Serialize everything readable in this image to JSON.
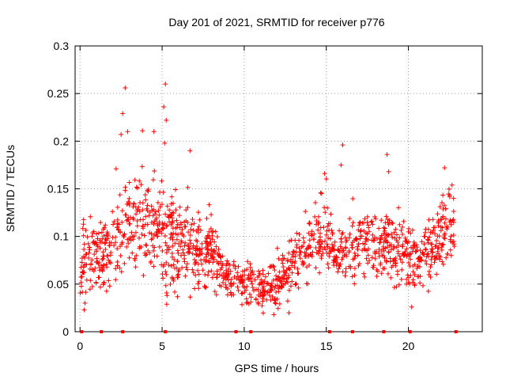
{
  "chart_data": {
    "type": "scatter",
    "title": "Day 201 of 2021, SRMTID for receiver p776",
    "xlabel": "GPS time / hours",
    "ylabel": "SRMTID / TECUs",
    "xlim": [
      -0.3,
      24.5
    ],
    "ylim": [
      0,
      0.3
    ],
    "xticks": [
      0,
      5,
      10,
      15,
      20
    ],
    "yticks": [
      0,
      0.05,
      0.1,
      0.15,
      0.2,
      0.25,
      0.3
    ],
    "xtick_labels": [
      "0",
      "5",
      "10",
      "15",
      "20"
    ],
    "ytick_labels": [
      "0",
      "0.05",
      "0.1",
      "0.15",
      "0.2",
      "0.25",
      "0.3"
    ],
    "grid": true,
    "marker": "+",
    "color": "#ff0000",
    "n_points": 1400,
    "density_profile": [
      [
        0.0,
        0.07,
        0.035
      ],
      [
        1.0,
        0.075,
        0.03
      ],
      [
        2.0,
        0.09,
        0.035
      ],
      [
        2.7,
        0.12,
        0.045
      ],
      [
        3.5,
        0.11,
        0.04
      ],
      [
        4.2,
        0.115,
        0.04
      ],
      [
        5.2,
        0.1,
        0.045
      ],
      [
        6.5,
        0.09,
        0.035
      ],
      [
        8.0,
        0.085,
        0.035
      ],
      [
        9.0,
        0.06,
        0.02
      ],
      [
        10.0,
        0.05,
        0.018
      ],
      [
        11.2,
        0.045,
        0.018
      ],
      [
        12.5,
        0.06,
        0.025
      ],
      [
        13.5,
        0.085,
        0.03
      ],
      [
        14.5,
        0.095,
        0.035
      ],
      [
        15.0,
        0.11,
        0.035
      ],
      [
        15.5,
        0.08,
        0.015
      ],
      [
        16.5,
        0.09,
        0.03
      ],
      [
        17.5,
        0.095,
        0.025
      ],
      [
        18.5,
        0.09,
        0.03
      ],
      [
        19.5,
        0.085,
        0.03
      ],
      [
        20.5,
        0.075,
        0.025
      ],
      [
        21.5,
        0.09,
        0.03
      ],
      [
        22.4,
        0.11,
        0.035
      ]
    ],
    "outliers": [
      {
        "x": 2.6,
        "y": 0.229
      },
      {
        "x": 2.5,
        "y": 0.207
      },
      {
        "x": 2.75,
        "y": 0.256
      },
      {
        "x": 2.9,
        "y": 0.21
      },
      {
        "x": 3.8,
        "y": 0.211
      },
      {
        "x": 4.5,
        "y": 0.21
      },
      {
        "x": 5.2,
        "y": 0.26
      },
      {
        "x": 5.1,
        "y": 0.236
      },
      {
        "x": 5.25,
        "y": 0.222
      },
      {
        "x": 5.15,
        "y": 0.198
      },
      {
        "x": 6.7,
        "y": 0.19
      },
      {
        "x": 2.2,
        "y": 0.171
      },
      {
        "x": 16.0,
        "y": 0.196
      },
      {
        "x": 15.9,
        "y": 0.175
      },
      {
        "x": 18.7,
        "y": 0.186
      },
      {
        "x": 18.8,
        "y": 0.168
      },
      {
        "x": 22.2,
        "y": 0.172
      },
      {
        "x": 14.9,
        "y": 0.166
      },
      {
        "x": 20.2,
        "y": 0.026
      },
      {
        "x": 11.8,
        "y": 0.018
      },
      {
        "x": 0.3,
        "y": 0.03
      }
    ],
    "zero_points_x": [
      0.1,
      1.3,
      2.6,
      5.2,
      9.5,
      10.4,
      15.2,
      16.6,
      18.5,
      20.1,
      22.9
    ]
  }
}
